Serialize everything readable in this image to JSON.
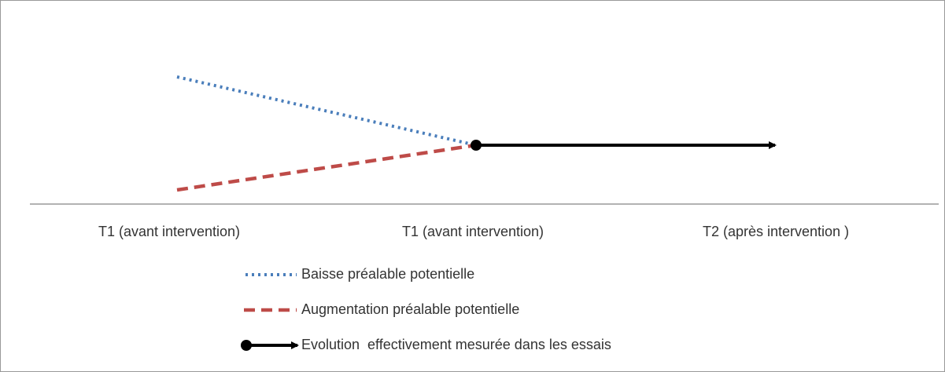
{
  "axis_labels": [
    "T1 (avant intervention)",
    "T1 (avant intervention)",
    "T2 (après intervention )"
  ],
  "legend": [
    {
      "label": "Baisse préalable potentielle"
    },
    {
      "label": "Augmentation préalable potentielle"
    },
    {
      "label": "Evolution  effectivement mesurée dans les essais"
    }
  ]
}
